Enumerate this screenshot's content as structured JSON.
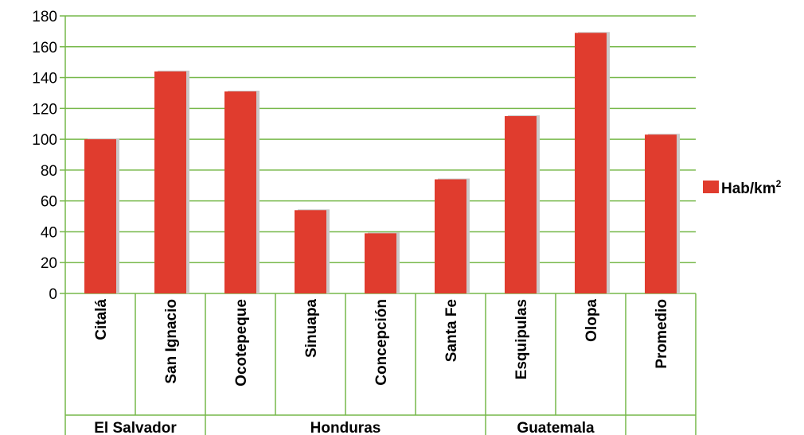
{
  "chart_data": {
    "type": "bar",
    "categories": [
      "Citalá",
      "San Ignacio",
      "Ocotepeque",
      "Sinuapa",
      "Concepción",
      "Santa Fe",
      "Esquipulas",
      "Olopa",
      "Promedio"
    ],
    "groups": [
      {
        "label": "El Salvador",
        "categories": [
          "Citalá",
          "San Ignacio"
        ]
      },
      {
        "label": "Honduras",
        "categories": [
          "Ocotepeque",
          "Sinuapa",
          "Concepción",
          "Santa Fe"
        ]
      },
      {
        "label": "Guatemala",
        "categories": [
          "Esquipulas",
          "Olopa"
        ]
      },
      {
        "label": "",
        "categories": [
          "Promedio"
        ]
      }
    ],
    "series": [
      {
        "name": "Hab/km²",
        "name_base": "Hab/km",
        "name_superscript": "2",
        "color": "#e03c2e",
        "values": [
          100,
          144,
          131,
          54,
          39,
          74,
          115,
          169,
          103
        ]
      }
    ],
    "ylim": [
      0,
      180
    ],
    "yticks": [
      0,
      20,
      40,
      60,
      80,
      100,
      120,
      140,
      160,
      180
    ],
    "grid": true,
    "grid_color": "#77b84a",
    "legend": "right"
  }
}
